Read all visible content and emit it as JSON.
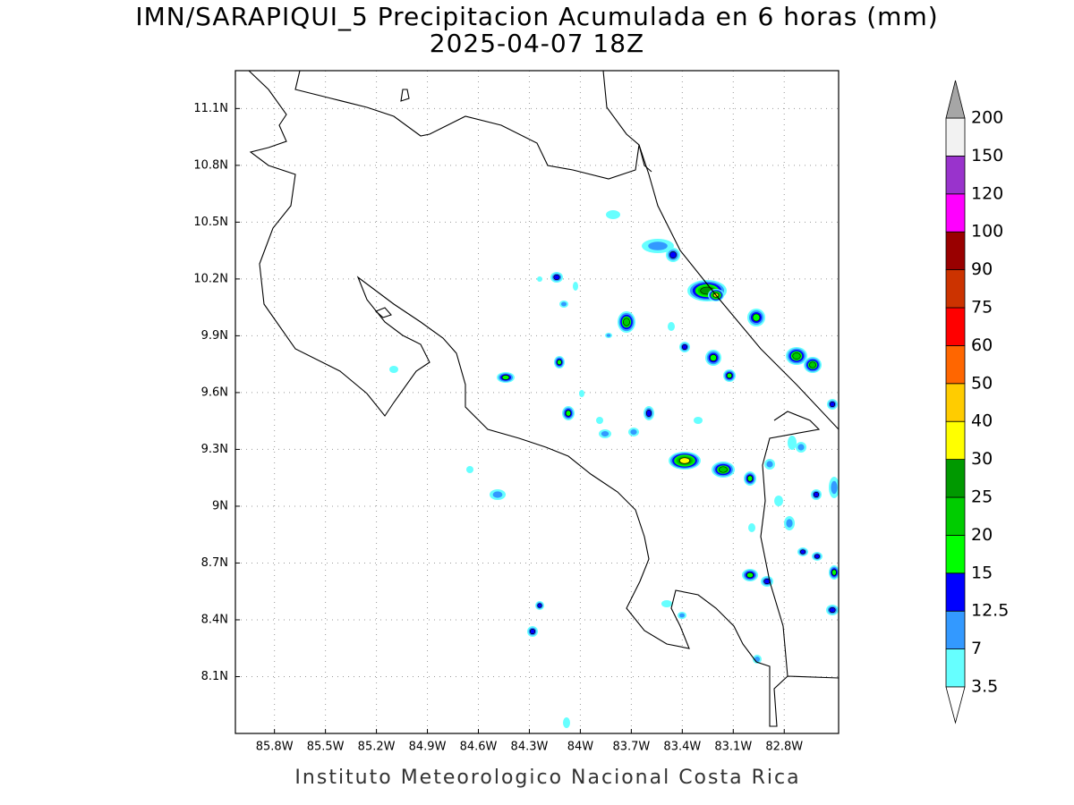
{
  "title": "IMN/SARAPIQUI_5 Precipitacion Acumulada en 6 horas (mm)",
  "subtitle": "2025-04-07 18Z",
  "footer": "Instituto Meteorologico Nacional Costa Rica",
  "lonlim": [
    -86.03,
    -82.48
  ],
  "latlim": [
    7.8,
    11.3
  ],
  "lon_ticks": [
    {
      "value": -85.8,
      "label": "85.8W"
    },
    {
      "value": -85.5,
      "label": "85.5W"
    },
    {
      "value": -85.2,
      "label": "85.2W"
    },
    {
      "value": -84.9,
      "label": "84.9W"
    },
    {
      "value": -84.6,
      "label": "84.6W"
    },
    {
      "value": -84.3,
      "label": "84.3W"
    },
    {
      "value": -84.0,
      "label": "84W"
    },
    {
      "value": -83.7,
      "label": "83.7W"
    },
    {
      "value": -83.4,
      "label": "83.4W"
    },
    {
      "value": -83.1,
      "label": "83.1W"
    },
    {
      "value": -82.8,
      "label": "82.8W"
    }
  ],
  "lat_ticks": [
    {
      "value": 11.1,
      "label": "11.1N"
    },
    {
      "value": 10.8,
      "label": "10.8N"
    },
    {
      "value": 10.5,
      "label": "10.5N"
    },
    {
      "value": 10.2,
      "label": "10.2N"
    },
    {
      "value": 9.9,
      "label": "9.9N"
    },
    {
      "value": 9.6,
      "label": "9.6N"
    },
    {
      "value": 9.3,
      "label": "9.3N"
    },
    {
      "value": 9.0,
      "label": "9N"
    },
    {
      "value": 8.7,
      "label": "8.7N"
    },
    {
      "value": 8.4,
      "label": "8.4N"
    },
    {
      "value": 8.1,
      "label": "8.1N"
    }
  ],
  "colorbar": {
    "levels": [
      3.5,
      7,
      12.5,
      15,
      20,
      25,
      30,
      40,
      50,
      60,
      75,
      90,
      100,
      120,
      150,
      200
    ],
    "colors": [
      "#ffffff",
      "#66ffff",
      "#3399ff",
      "#0000ff",
      "#00ff00",
      "#00cc00",
      "#009900",
      "#ffff00",
      "#ffcc00",
      "#ff6600",
      "#ff0000",
      "#cc3300",
      "#990000",
      "#ff00ff",
      "#9933cc",
      "#f2f2f2",
      "#a6a6a6"
    ]
  }
}
